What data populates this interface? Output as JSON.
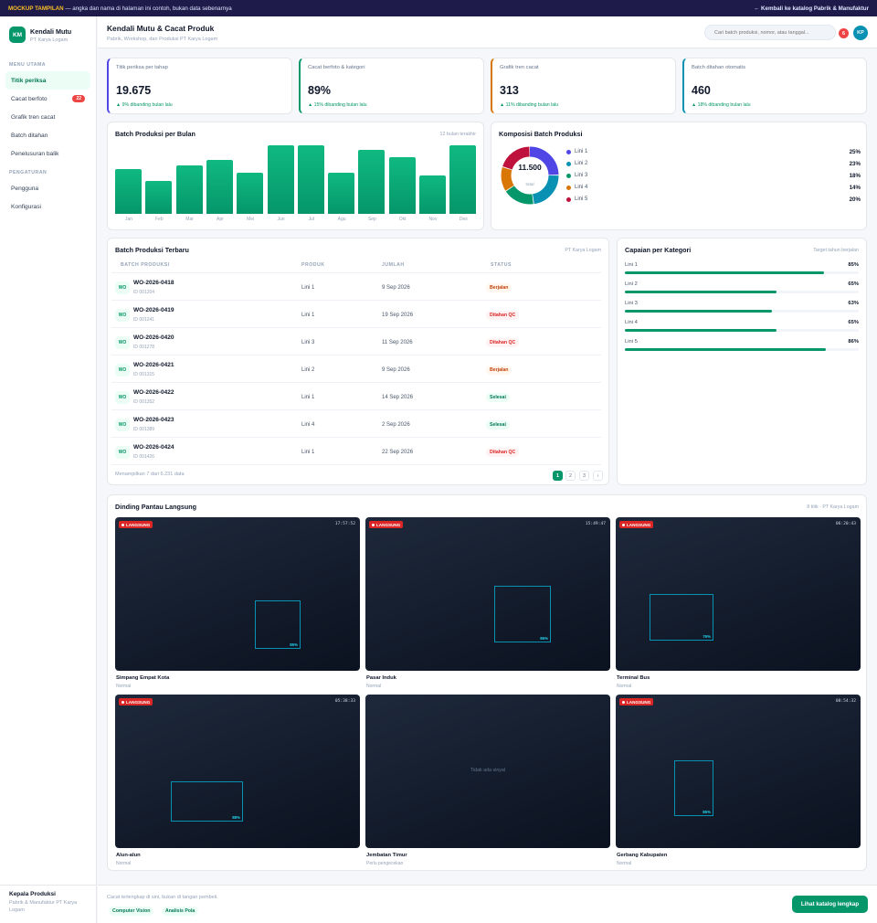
{
  "banner": {
    "tag": "MOCKUP TAMPILAN",
    "text": " — angka dan nama di halaman ini contoh, bukan data sebenarnya",
    "back": "← Kembali ke katalog Pabrik & Manufaktur"
  },
  "sidebar": {
    "logo": "KM",
    "app_name": "Kendali Mutu",
    "org": "PT Karya Logam",
    "section_main": "MENU UTAMA",
    "items": [
      {
        "label": "Titik periksa"
      },
      {
        "label": "Cacat berfoto",
        "badge": "22"
      },
      {
        "label": "Grafik tren cacat"
      },
      {
        "label": "Batch ditahan"
      },
      {
        "label": "Penelusuran balik"
      }
    ],
    "section_settings": "PENGATURAN",
    "settings": [
      {
        "label": "Pengguna"
      },
      {
        "label": "Konfigurasi"
      }
    ],
    "user_name": "Kepala Produksi",
    "user_org": "Pabrik & Manufaktur PT Karya Logam"
  },
  "header": {
    "title": "Kendali Mutu & Cacat Produk",
    "subtitle": "Pabrik, Workshop, dan Produksi PT Karya Logam",
    "search_placeholder": "Cari batch produksi, nomor, atau tanggal...",
    "notif_count": "6",
    "avatar": "KP"
  },
  "kpis": [
    {
      "label": "Titik periksa per tahap",
      "value": "19.675",
      "delta": "▲ 9% dibanding bulan lalu",
      "color": "#4f46e5"
    },
    {
      "label": "Cacat berfoto & kategori",
      "value": "89%",
      "delta": "▲ 15% dibanding bulan lalu",
      "color": "#059669"
    },
    {
      "label": "Grafik tren cacat",
      "value": "313",
      "delta": "▲ 11% dibanding bulan lalu",
      "color": "#d97706"
    },
    {
      "label": "Batch ditahan otomatis",
      "value": "460",
      "delta": "▲ 18% dibanding bulan lalu",
      "color": "#0891b2"
    }
  ],
  "monthly": {
    "title": "Batch Produksi per Bulan",
    "meta": "12 bulan terakhir"
  },
  "donut": {
    "title": "Komposisi Batch Produksi",
    "total": "11.500",
    "total_label": "total"
  },
  "chart_data": [
    {
      "type": "bar",
      "title": "Batch Produksi per Bulan",
      "categories": [
        "Jan",
        "Feb",
        "Mar",
        "Apr",
        "Mei",
        "Jun",
        "Jul",
        "Agu",
        "Sep",
        "Okt",
        "Nov",
        "Des"
      ],
      "values": [
        64,
        48,
        70,
        77,
        59,
        99,
        99,
        59,
        92,
        81,
        55,
        99
      ],
      "ylim": [
        0,
        100
      ]
    },
    {
      "type": "pie",
      "title": "Komposisi Batch Produksi",
      "labels": [
        "Lini 1",
        "Lini 2",
        "Lini 3",
        "Lini 4",
        "Lini 5"
      ],
      "values": [
        25,
        23,
        18,
        14,
        20
      ],
      "colors": [
        "#4f46e5",
        "#0891b2",
        "#059669",
        "#d97706",
        "#be123c"
      ]
    }
  ],
  "table": {
    "title": "Batch Produksi Terbaru",
    "meta": "PT Karya Logam",
    "headers": [
      "BATCH PRODUKSI",
      "PRODUK",
      "JUMLAH",
      "STATUS"
    ],
    "rows": [
      {
        "code": "WO",
        "id": "WO-2026-0418",
        "sub": "ID 001204",
        "product": "Lini 1",
        "date": "9 Sep 2026",
        "status": "Berjalan",
        "kind": "run"
      },
      {
        "code": "WO",
        "id": "WO-2026-0419",
        "sub": "ID 001241",
        "product": "Lini 1",
        "date": "19 Sep 2026",
        "status": "Ditahan QC",
        "kind": "hold"
      },
      {
        "code": "WO",
        "id": "WO-2026-0420",
        "sub": "ID 001278",
        "product": "Lini 3",
        "date": "11 Sep 2026",
        "status": "Ditahan QC",
        "kind": "hold"
      },
      {
        "code": "WO",
        "id": "WO-2026-0421",
        "sub": "ID 001315",
        "product": "Lini 2",
        "date": "9 Sep 2026",
        "status": "Berjalan",
        "kind": "run"
      },
      {
        "code": "WO",
        "id": "WO-2026-0422",
        "sub": "ID 001352",
        "product": "Lini 1",
        "date": "14 Sep 2026",
        "status": "Selesai",
        "kind": "done"
      },
      {
        "code": "WO",
        "id": "WO-2026-0423",
        "sub": "ID 001389",
        "product": "Lini 4",
        "date": "2 Sep 2026",
        "status": "Selesai",
        "kind": "done"
      },
      {
        "code": "WO",
        "id": "WO-2026-0424",
        "sub": "ID 001426",
        "product": "Lini 1",
        "date": "22 Sep 2026",
        "status": "Ditahan QC",
        "kind": "hold"
      }
    ],
    "footer": "Menampilkan 7 dari 6.231 data",
    "pages": [
      "1",
      "2",
      "3",
      "›"
    ]
  },
  "achievement": {
    "title": "Capaian per Kategori",
    "meta": "Target tahun berjalan",
    "items": [
      {
        "label": "Lini 1",
        "pct": "85%",
        "v": 0.85
      },
      {
        "label": "Lini 2",
        "pct": "65%",
        "v": 0.65
      },
      {
        "label": "Lini 3",
        "pct": "63%",
        "v": 0.63
      },
      {
        "label": "Lini 4",
        "pct": "65%",
        "v": 0.65
      },
      {
        "label": "Lini 5",
        "pct": "86%",
        "v": 0.86
      }
    ]
  },
  "cctv": {
    "title": "Dinding Pantau Langsung",
    "meta": "8 titik · PT Karya Logam",
    "live": "LANGSUNG",
    "no_signal": "Tidak ada sinyal",
    "cams": [
      {
        "name": "Simpang Empat Kota",
        "status": "Normal",
        "time": "17:57:52",
        "conf": "85%"
      },
      {
        "name": "Pasar Induk",
        "status": "Normal",
        "time": "15:49:47",
        "conf": "86%"
      },
      {
        "name": "Terminal Bus",
        "status": "Normal",
        "time": "06:20:43",
        "conf": "76%"
      },
      {
        "name": "Alun-alun",
        "status": "Normal",
        "time": "05:38:33",
        "conf": "88%"
      },
      {
        "name": "Jembatan Timur",
        "status": "Perlu pengecekan",
        "time": "",
        "conf": ""
      },
      {
        "name": "Gerbang Kabupaten",
        "status": "Normal",
        "time": "08:54:32",
        "conf": "85%"
      }
    ]
  },
  "footer": {
    "note": "Cacat terlengkap di sini, bukan di tangan pembeli.",
    "tags": [
      "Computer Vision",
      "Analisis Pola"
    ],
    "cta": "Lihat katalog lengkap"
  }
}
